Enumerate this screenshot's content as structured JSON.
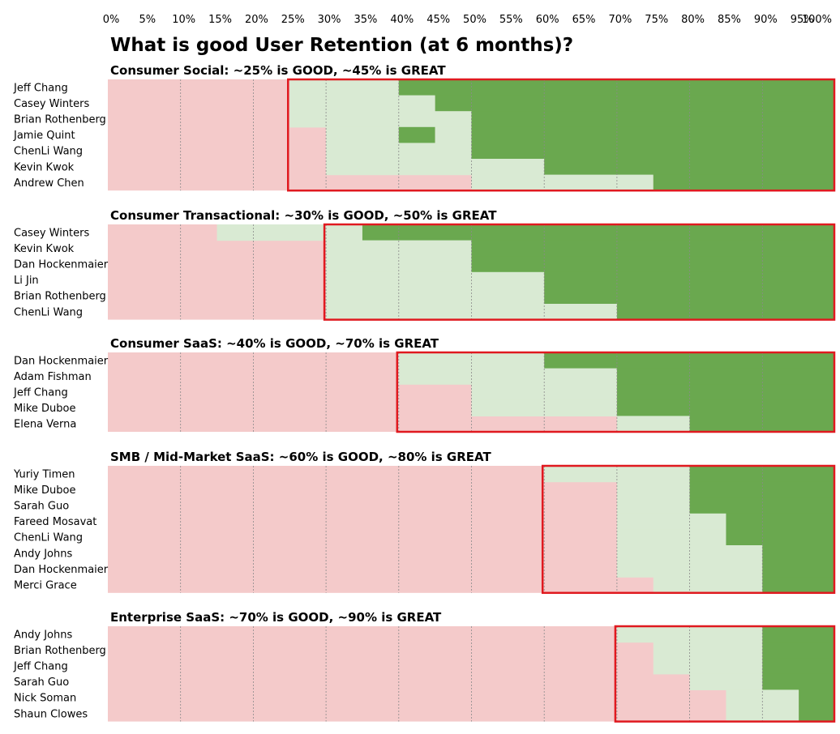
{
  "colors": {
    "bad": "#f4caca",
    "good": "#d9ead3",
    "great": "#6aa84f",
    "highlight": "#e0191f",
    "gridline": "#8a8a8a"
  },
  "chart_data": {
    "type": "heatmap",
    "title": "What is good User Retention (at 6 months)?",
    "x_ticks": [
      "0%",
      "5%",
      "10%",
      "15%",
      "20%",
      "25%",
      "30%",
      "35%",
      "40%",
      "45%",
      "50%",
      "55%",
      "60%",
      "65%",
      "70%",
      "75%",
      "80%",
      "85%",
      "90%",
      "95%",
      "100%"
    ],
    "xlim": [
      0,
      100
    ],
    "grid": true,
    "legend": "none",
    "panels": [
      {
        "title": "Consumer Social: ~25% is GOOD, ~45% is GREAT",
        "good_threshold": 25,
        "great_threshold": 45,
        "rows": [
          {
            "name": "Jeff Chang",
            "good_from": 25,
            "great_from": 40
          },
          {
            "name": "Casey Winters",
            "good_from": 25,
            "great_from": 45
          },
          {
            "name": "Brian Rothenberg",
            "good_from": 25,
            "great_from": 50
          },
          {
            "name": "Jamie Quint",
            "good_from": 30,
            "great_from": 40,
            "good_again_from": 45,
            "great_again_from": 50
          },
          {
            "name": "ChenLi Wang",
            "good_from": 30,
            "great_from": 50
          },
          {
            "name": "Kevin Kwok",
            "good_from": 30,
            "great_from": 60
          },
          {
            "name": "Andrew Chen",
            "good_from": 50,
            "great_from": 75
          }
        ]
      },
      {
        "title": "Consumer Transactional: ~30% is GOOD, ~50% is GREAT",
        "good_threshold": 30,
        "great_threshold": 50,
        "rows": [
          {
            "name": "Casey Winters",
            "good_from": 15,
            "great_from": 35
          },
          {
            "name": "Kevin Kwok",
            "good_from": 30,
            "great_from": 50
          },
          {
            "name": "Dan Hockenmaier",
            "good_from": 30,
            "great_from": 50
          },
          {
            "name": "Li Jin",
            "good_from": 30,
            "great_from": 60
          },
          {
            "name": "Brian Rothenberg",
            "good_from": 30,
            "great_from": 60
          },
          {
            "name": "ChenLi Wang",
            "good_from": 30,
            "great_from": 70
          }
        ]
      },
      {
        "title": "Consumer SaaS: ~40% is GOOD, ~70% is GREAT",
        "good_threshold": 40,
        "great_threshold": 70,
        "rows": [
          {
            "name": "Dan Hockenmaier",
            "good_from": 40,
            "great_from": 60
          },
          {
            "name": "Adam Fishman",
            "good_from": 40,
            "great_from": 70
          },
          {
            "name": "Jeff Chang",
            "good_from": 50,
            "great_from": 70
          },
          {
            "name": "Mike Duboe",
            "good_from": 50,
            "great_from": 70
          },
          {
            "name": "Elena Verna",
            "good_from": 70,
            "great_from": 80
          }
        ]
      },
      {
        "title": "SMB / Mid-Market SaaS: ~60% is GOOD, ~80% is GREAT",
        "good_threshold": 60,
        "great_threshold": 80,
        "rows": [
          {
            "name": "Yuriy Timen",
            "good_from": 60,
            "great_from": 80
          },
          {
            "name": "Mike Duboe",
            "good_from": 70,
            "great_from": 80
          },
          {
            "name": "Sarah Guo",
            "good_from": 70,
            "great_from": 80
          },
          {
            "name": "Fareed Mosavat",
            "good_from": 70,
            "great_from": 85
          },
          {
            "name": "ChenLi Wang",
            "good_from": 70,
            "great_from": 85
          },
          {
            "name": "Andy Johns",
            "good_from": 70,
            "great_from": 90
          },
          {
            "name": "Dan Hockenmaier",
            "good_from": 70,
            "great_from": 90
          },
          {
            "name": "Merci Grace",
            "good_from": 75,
            "great_from": 90
          }
        ]
      },
      {
        "title": "Enterprise SaaS: ~70% is GOOD, ~90% is GREAT",
        "good_threshold": 70,
        "great_threshold": 90,
        "rows": [
          {
            "name": "Andy Johns",
            "good_from": 70,
            "great_from": 90
          },
          {
            "name": "Brian Rothenberg",
            "good_from": 75,
            "great_from": 90
          },
          {
            "name": "Jeff Chang",
            "good_from": 75,
            "great_from": 90
          },
          {
            "name": "Sarah Guo",
            "good_from": 80,
            "great_from": 90
          },
          {
            "name": "Nick Soman",
            "good_from": 85,
            "great_from": 95
          },
          {
            "name": "Shaun Clowes",
            "good_from": 85,
            "great_from": 95
          }
        ]
      }
    ]
  }
}
